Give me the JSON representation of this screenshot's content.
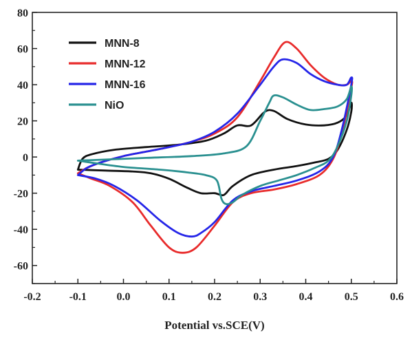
{
  "chart_data": {
    "type": "line",
    "title": "",
    "xlabel": "Potential vs.SCE(V)",
    "ylabel": "",
    "xlim": [
      -0.2,
      0.6
    ],
    "ylim": [
      -70,
      80
    ],
    "xticks": [
      "-0.2",
      "-0.1",
      "0.0",
      "0.1",
      "0.2",
      "0.3",
      "0.4",
      "0.5",
      "0.6"
    ],
    "yticks": [
      "80",
      "60",
      "40",
      "20",
      "0",
      "-20",
      "-40",
      "-60"
    ],
    "grid": false,
    "legend": "top-left",
    "series": [
      {
        "name": "MNN-8",
        "color": "#111111",
        "points": [
          [
            -0.1,
            -7
          ],
          [
            -0.09,
            -1
          ],
          [
            -0.07,
            1.5
          ],
          [
            -0.02,
            4
          ],
          [
            0.05,
            5.5
          ],
          [
            0.12,
            6.8
          ],
          [
            0.18,
            9
          ],
          [
            0.22,
            13
          ],
          [
            0.25,
            17.5
          ],
          [
            0.28,
            17.5
          ],
          [
            0.31,
            25
          ],
          [
            0.33,
            25.5
          ],
          [
            0.36,
            21
          ],
          [
            0.4,
            18
          ],
          [
            0.44,
            17.5
          ],
          [
            0.47,
            19
          ],
          [
            0.49,
            23
          ],
          [
            0.5,
            30
          ],
          [
            0.5,
            25
          ],
          [
            0.49,
            15
          ],
          [
            0.47,
            4
          ],
          [
            0.45,
            -1
          ],
          [
            0.42,
            -3
          ],
          [
            0.38,
            -5
          ],
          [
            0.33,
            -7
          ],
          [
            0.28,
            -10
          ],
          [
            0.24,
            -16
          ],
          [
            0.22,
            -21
          ],
          [
            0.2,
            -20
          ],
          [
            0.17,
            -20
          ],
          [
            0.14,
            -17
          ],
          [
            0.1,
            -12
          ],
          [
            0.06,
            -9
          ],
          [
            0.02,
            -8
          ],
          [
            -0.04,
            -7.5
          ],
          [
            -0.1,
            -7
          ]
        ]
      },
      {
        "name": "MNN-12",
        "color": "#e82b2b",
        "points": [
          [
            -0.1,
            -9
          ],
          [
            -0.08,
            -6
          ],
          [
            -0.05,
            -3
          ],
          [
            0.0,
            0.5
          ],
          [
            0.05,
            3
          ],
          [
            0.1,
            5.5
          ],
          [
            0.15,
            8.5
          ],
          [
            0.2,
            13
          ],
          [
            0.25,
            22
          ],
          [
            0.3,
            42
          ],
          [
            0.33,
            55
          ],
          [
            0.355,
            63.5
          ],
          [
            0.38,
            60
          ],
          [
            0.41,
            51
          ],
          [
            0.44,
            44
          ],
          [
            0.47,
            40
          ],
          [
            0.49,
            40
          ],
          [
            0.5,
            42
          ],
          [
            0.5,
            38
          ],
          [
            0.48,
            14
          ],
          [
            0.46,
            -1
          ],
          [
            0.43,
            -10
          ],
          [
            0.38,
            -15
          ],
          [
            0.33,
            -18
          ],
          [
            0.28,
            -20
          ],
          [
            0.24,
            -25
          ],
          [
            0.2,
            -38
          ],
          [
            0.16,
            -50
          ],
          [
            0.13,
            -53
          ],
          [
            0.1,
            -50
          ],
          [
            0.06,
            -38
          ],
          [
            0.02,
            -25
          ],
          [
            -0.03,
            -16
          ],
          [
            -0.07,
            -12
          ],
          [
            -0.1,
            -9
          ]
        ]
      },
      {
        "name": "MNN-16",
        "color": "#2525e8",
        "points": [
          [
            -0.1,
            -10
          ],
          [
            -0.08,
            -6
          ],
          [
            -0.05,
            -3
          ],
          [
            0.0,
            0.5
          ],
          [
            0.05,
            3
          ],
          [
            0.1,
            5.5
          ],
          [
            0.15,
            8.5
          ],
          [
            0.2,
            14
          ],
          [
            0.25,
            24
          ],
          [
            0.3,
            40
          ],
          [
            0.33,
            50
          ],
          [
            0.35,
            54
          ],
          [
            0.38,
            52
          ],
          [
            0.41,
            46
          ],
          [
            0.44,
            42
          ],
          [
            0.47,
            40
          ],
          [
            0.49,
            40
          ],
          [
            0.5,
            44
          ],
          [
            0.5,
            40
          ],
          [
            0.48,
            16
          ],
          [
            0.46,
            0
          ],
          [
            0.43,
            -8
          ],
          [
            0.38,
            -13
          ],
          [
            0.33,
            -16
          ],
          [
            0.28,
            -19
          ],
          [
            0.24,
            -24
          ],
          [
            0.2,
            -36
          ],
          [
            0.17,
            -42
          ],
          [
            0.15,
            -44
          ],
          [
            0.12,
            -42
          ],
          [
            0.08,
            -35
          ],
          [
            0.03,
            -24
          ],
          [
            -0.02,
            -16
          ],
          [
            -0.06,
            -12
          ],
          [
            -0.1,
            -10
          ]
        ]
      },
      {
        "name": "NiO",
        "color": "#2a9090",
        "points": [
          [
            -0.1,
            -2
          ],
          [
            -0.05,
            -1.5
          ],
          [
            0.05,
            -0.5
          ],
          [
            0.15,
            0.5
          ],
          [
            0.22,
            2
          ],
          [
            0.27,
            6
          ],
          [
            0.3,
            20
          ],
          [
            0.32,
            30
          ],
          [
            0.33,
            34
          ],
          [
            0.35,
            33
          ],
          [
            0.38,
            29
          ],
          [
            0.41,
            26
          ],
          [
            0.44,
            26.5
          ],
          [
            0.47,
            28
          ],
          [
            0.49,
            32
          ],
          [
            0.5,
            39
          ],
          [
            0.5,
            34
          ],
          [
            0.49,
            20
          ],
          [
            0.47,
            6
          ],
          [
            0.45,
            -2
          ],
          [
            0.42,
            -6
          ],
          [
            0.38,
            -10
          ],
          [
            0.34,
            -13
          ],
          [
            0.3,
            -16
          ],
          [
            0.26,
            -21
          ],
          [
            0.24,
            -25
          ],
          [
            0.225,
            -26
          ],
          [
            0.215,
            -23
          ],
          [
            0.205,
            -13
          ],
          [
            0.18,
            -10
          ],
          [
            0.14,
            -8.5
          ],
          [
            0.08,
            -7
          ],
          [
            0.0,
            -5.5
          ],
          [
            -0.06,
            -3.5
          ],
          [
            -0.1,
            -2
          ]
        ]
      }
    ]
  }
}
